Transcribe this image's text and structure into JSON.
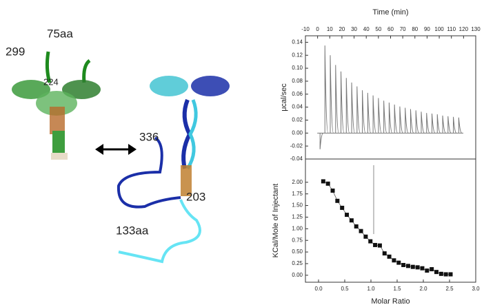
{
  "structure_labels": [
    "299",
    "75aa",
    "224",
    "336",
    "203",
    "133aa"
  ],
  "chart_data": [
    {
      "type": "injection-peaks",
      "x_label": "Time (min)",
      "y_label": "μcal/sec",
      "x": [
        2,
        6,
        10.4,
        14.8,
        19.2,
        23.6,
        28,
        32.4,
        36.8,
        41.2,
        45.6,
        50,
        54.4,
        58.8,
        63.2,
        67.6,
        72,
        76.4,
        80.8,
        85.2,
        89.6,
        94,
        98.4,
        102.8,
        107.2,
        111.6,
        116
      ],
      "values": [
        -0.025,
        0.135,
        0.12,
        0.105,
        0.095,
        0.085,
        0.078,
        0.072,
        0.066,
        0.062,
        0.058,
        0.054,
        0.05,
        0.047,
        0.044,
        0.041,
        0.039,
        0.037,
        0.035,
        0.033,
        0.031,
        0.03,
        0.029,
        0.027,
        0.026,
        0.025,
        0.024
      ],
      "color": "#777777",
      "xlim": [
        -10,
        130
      ],
      "xticks": [
        -10,
        0,
        10,
        20,
        30,
        40,
        50,
        60,
        70,
        80,
        90,
        100,
        110,
        120,
        130
      ],
      "ylim": [
        -0.04,
        0.15
      ],
      "yticks": [
        -0.04,
        -0.02,
        {
          "value": 0,
          "label": "0.00"
        },
        0.02,
        0.04,
        0.06,
        0.08,
        {
          "value": 0.1,
          "label": "0.10"
        },
        0.12,
        0.14
      ]
    },
    {
      "type": "scatter",
      "x_label": "Molar Ratio",
      "y_label": "KCal/Mole of Injectant",
      "x": [
        0.09,
        0.18,
        0.27,
        0.36,
        0.45,
        0.54,
        0.63,
        0.72,
        0.81,
        0.9,
        0.99,
        1.08,
        1.17,
        1.26,
        1.35,
        1.44,
        1.53,
        1.62,
        1.71,
        1.8,
        1.89,
        1.98,
        2.07,
        2.16,
        2.25,
        2.34,
        2.43,
        2.52
      ],
      "values": [
        2.02,
        1.97,
        1.82,
        1.6,
        1.45,
        1.3,
        1.18,
        1.05,
        0.95,
        0.83,
        0.73,
        0.65,
        0.64,
        0.47,
        0.4,
        0.32,
        0.27,
        0.22,
        0.2,
        0.18,
        0.17,
        0.15,
        0.1,
        0.13,
        0.07,
        0.03,
        0.02,
        0.02
      ],
      "color": "#111111",
      "xlim": [
        -0.25,
        3.0
      ],
      "xticks": [
        {
          "value": 0,
          "label": "0.0"
        },
        0.5,
        {
          "value": 1,
          "label": "1.0"
        },
        1.5,
        {
          "value": 2,
          "label": "2.0"
        },
        2.5,
        {
          "value": 3,
          "label": "3.0"
        }
      ],
      "ylim": [
        -0.15,
        2.5
      ],
      "yticks": [
        {
          "value": 0,
          "label": "0.00"
        },
        0.25,
        {
          "value": 0.5,
          "label": "0.50"
        },
        0.75,
        {
          "value": 1,
          "label": "1.00"
        },
        1.25,
        {
          "value": 1.5,
          "label": "1.50"
        },
        1.75,
        {
          "value": 2,
          "label": "2.00"
        }
      ]
    }
  ]
}
